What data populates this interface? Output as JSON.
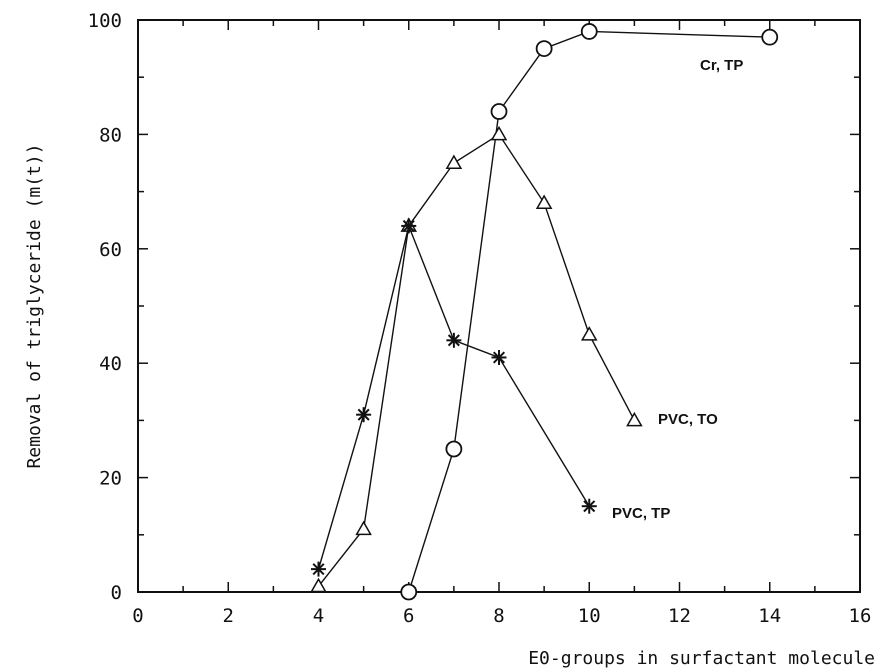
{
  "chart_data": {
    "type": "line",
    "xlabel": "E0-groups in surfactant molecule",
    "ylabel": "Removal of triglyceride (m(t))",
    "xlim": [
      0,
      16
    ],
    "ylim": [
      0,
      100
    ],
    "x_ticks": [
      "0",
      "2",
      "4",
      "6",
      "8",
      "10",
      "12",
      "14",
      "16"
    ],
    "y_ticks": [
      "0",
      "20",
      "40",
      "60",
      "80",
      "100"
    ],
    "grid": false,
    "series": [
      {
        "name": "Cr, TP",
        "marker": "circle",
        "x": [
          6,
          7,
          8,
          9,
          10,
          14
        ],
        "y": [
          0,
          25,
          84,
          95,
          98,
          97
        ]
      },
      {
        "name": "PVC, TO",
        "marker": "triangle",
        "x": [
          4,
          5,
          6,
          7,
          8,
          9,
          10,
          11
        ],
        "y": [
          1,
          11,
          64,
          75,
          80,
          68,
          45,
          30
        ]
      },
      {
        "name": "PVC, TP",
        "marker": "star",
        "x": [
          4,
          5,
          6,
          7,
          8,
          10
        ],
        "y": [
          4,
          31,
          64,
          44,
          41,
          15
        ]
      }
    ]
  }
}
